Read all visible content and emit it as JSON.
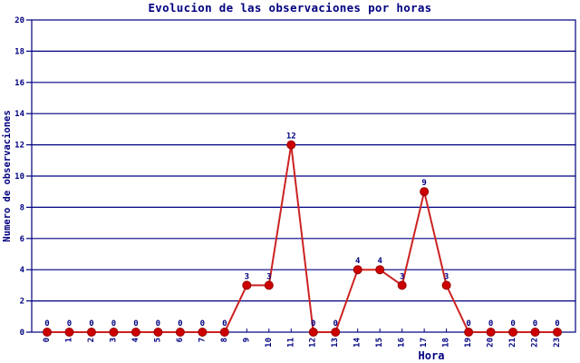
{
  "chart_data": {
    "type": "line",
    "title": "Evolucion de las observaciones por horas",
    "xlabel": "Hora",
    "ylabel": "Numero de observaciones",
    "categories": [
      0,
      1,
      2,
      3,
      4,
      5,
      6,
      7,
      8,
      9,
      10,
      11,
      12,
      13,
      14,
      15,
      16,
      17,
      18,
      19,
      20,
      21,
      22,
      23
    ],
    "values": [
      0,
      0,
      0,
      0,
      0,
      0,
      0,
      0,
      0,
      3,
      3,
      12,
      0,
      0,
      4,
      4,
      3,
      9,
      3,
      0,
      0,
      0,
      0,
      0
    ],
    "ylim": [
      0,
      20
    ],
    "yticks": [
      0,
      2,
      4,
      6,
      8,
      10,
      12,
      14,
      16,
      18,
      20
    ],
    "grid": true,
    "legend": "none",
    "point_labels": true,
    "x_tick_label_rotation": -90,
    "colors": {
      "axis": "#000080",
      "text": "#000080",
      "grid": "#000080",
      "line": "#cc2222",
      "marker": "#cc0000",
      "marker_edge": "#990000",
      "background": "#ffffff"
    }
  }
}
